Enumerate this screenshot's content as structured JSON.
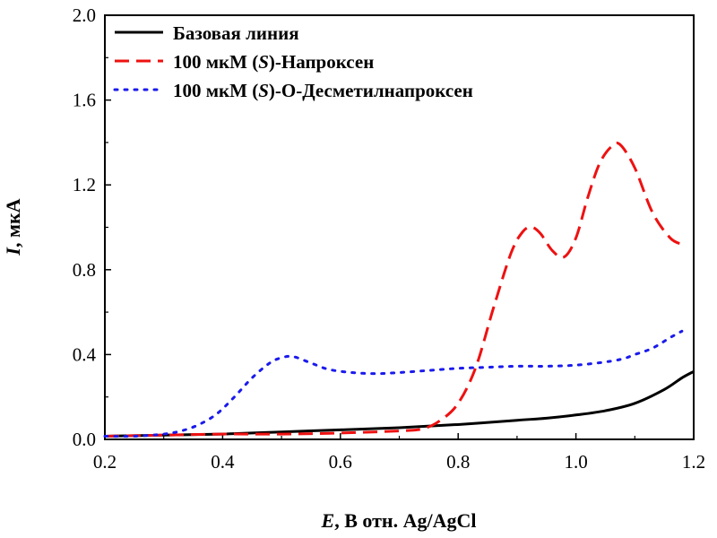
{
  "chart_data": {
    "type": "line",
    "xlim": [
      0.2,
      1.2
    ],
    "ylim": [
      0.0,
      2.0
    ],
    "x_ticks": [
      "0.2",
      "0.4",
      "0.6",
      "0.8",
      "1.0",
      "1.2"
    ],
    "y_ticks": [
      "0.0",
      "0.4",
      "0.8",
      "1.2",
      "1.6",
      "2.0"
    ],
    "xlabel": {
      "var": "E",
      "rest": ", В отн. Ag/AgCl"
    },
    "ylabel": {
      "var": "I",
      "rest": ", мкА"
    },
    "grid": false,
    "legend_position": "top-left",
    "series": [
      {
        "legend": {
          "before": "Базовая линия",
          "italic": "",
          "after": ""
        },
        "color": "#000000",
        "style": "solid",
        "points": [
          [
            0.2,
            0.015
          ],
          [
            0.3,
            0.02
          ],
          [
            0.4,
            0.025
          ],
          [
            0.5,
            0.035
          ],
          [
            0.6,
            0.045
          ],
          [
            0.7,
            0.055
          ],
          [
            0.8,
            0.07
          ],
          [
            0.9,
            0.09
          ],
          [
            0.95,
            0.1
          ],
          [
            1.0,
            0.115
          ],
          [
            1.05,
            0.135
          ],
          [
            1.1,
            0.17
          ],
          [
            1.15,
            0.235
          ],
          [
            1.18,
            0.29
          ],
          [
            1.2,
            0.32
          ]
        ]
      },
      {
        "legend": {
          "before": "100 мкМ (",
          "italic": "S",
          "after": ")-Напроксен"
        },
        "color": "#ee1111",
        "style": "dashed",
        "points": [
          [
            0.2,
            0.015
          ],
          [
            0.3,
            0.02
          ],
          [
            0.4,
            0.025
          ],
          [
            0.5,
            0.025
          ],
          [
            0.6,
            0.03
          ],
          [
            0.7,
            0.04
          ],
          [
            0.74,
            0.05
          ],
          [
            0.77,
            0.09
          ],
          [
            0.8,
            0.17
          ],
          [
            0.83,
            0.34
          ],
          [
            0.86,
            0.62
          ],
          [
            0.89,
            0.88
          ],
          [
            0.91,
            0.98
          ],
          [
            0.925,
            1.0
          ],
          [
            0.94,
            0.97
          ],
          [
            0.96,
            0.89
          ],
          [
            0.98,
            0.86
          ],
          [
            1.0,
            0.95
          ],
          [
            1.02,
            1.14
          ],
          [
            1.04,
            1.3
          ],
          [
            1.06,
            1.38
          ],
          [
            1.075,
            1.39
          ],
          [
            1.1,
            1.28
          ],
          [
            1.13,
            1.07
          ],
          [
            1.16,
            0.95
          ],
          [
            1.18,
            0.92
          ]
        ]
      },
      {
        "legend": {
          "before": "100 мкМ (",
          "italic": "S",
          "after": ")-О-Десметилнапроксен"
        },
        "color": "#1a1aee",
        "style": "dotted",
        "points": [
          [
            0.2,
            0.015
          ],
          [
            0.25,
            0.015
          ],
          [
            0.3,
            0.025
          ],
          [
            0.33,
            0.04
          ],
          [
            0.36,
            0.07
          ],
          [
            0.39,
            0.12
          ],
          [
            0.42,
            0.2
          ],
          [
            0.45,
            0.29
          ],
          [
            0.48,
            0.36
          ],
          [
            0.5,
            0.385
          ],
          [
            0.52,
            0.39
          ],
          [
            0.55,
            0.36
          ],
          [
            0.58,
            0.33
          ],
          [
            0.62,
            0.315
          ],
          [
            0.66,
            0.31
          ],
          [
            0.7,
            0.315
          ],
          [
            0.75,
            0.325
          ],
          [
            0.8,
            0.335
          ],
          [
            0.85,
            0.34
          ],
          [
            0.9,
            0.345
          ],
          [
            0.95,
            0.345
          ],
          [
            1.0,
            0.35
          ],
          [
            1.05,
            0.365
          ],
          [
            1.08,
            0.38
          ],
          [
            1.1,
            0.4
          ],
          [
            1.13,
            0.43
          ],
          [
            1.16,
            0.48
          ],
          [
            1.18,
            0.51
          ]
        ]
      }
    ]
  }
}
